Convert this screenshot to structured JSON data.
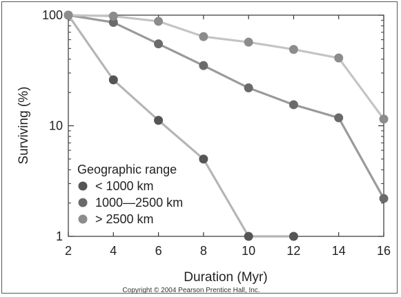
{
  "chart_data": {
    "type": "line",
    "xlabel": "Duration (Myr)",
    "ylabel": "Surviving (%)",
    "xlim": [
      2,
      16
    ],
    "ylim": [
      1,
      100
    ],
    "yscale": "log",
    "x_ticks": [
      "2",
      "4",
      "6",
      "8",
      "10",
      "12",
      "14",
      "16"
    ],
    "y_ticks": [
      "1",
      "10",
      "100"
    ],
    "legend_title": "Geographic range",
    "legend_position": "bottom-left",
    "grid": false,
    "series": [
      {
        "name": "< 1000 km",
        "color": "#555555",
        "x": [
          2,
          4,
          6,
          8,
          10,
          12
        ],
        "y": [
          100,
          26,
          11.2,
          5,
          1,
          1
        ]
      },
      {
        "name": "1000—2500 km",
        "color": "#6a6a6a",
        "x": [
          2,
          4,
          6,
          8,
          10,
          12,
          14,
          16
        ],
        "y": [
          100,
          86,
          55,
          35,
          22,
          15.5,
          11.8,
          2.2
        ]
      },
      {
        "name": "> 2500 km",
        "color": "#8c8c8c",
        "x": [
          2,
          4,
          6,
          8,
          10,
          12,
          14,
          16
        ],
        "y": [
          100,
          98,
          88,
          64,
          57,
          49,
          41,
          11.5
        ]
      }
    ]
  },
  "copyright": "Copyright © 2004 Pearson Prentice Hall, Inc."
}
